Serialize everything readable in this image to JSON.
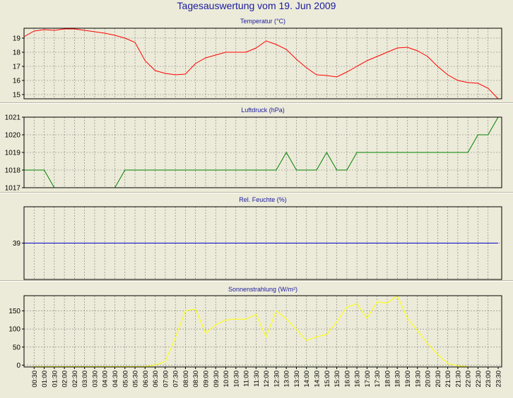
{
  "title": "Tagesauswertung vom 19. Jun 2009",
  "chart_data": [
    {
      "type": "line",
      "title": "Temperatur (°C)",
      "color": "#ff0000",
      "ylim": [
        14.7,
        19.7
      ],
      "yticks": [
        15,
        16,
        17,
        18,
        19
      ],
      "x_minutes": [
        0,
        30,
        60,
        90,
        120,
        150,
        180,
        210,
        240,
        270,
        300,
        330,
        360,
        390,
        420,
        450,
        480,
        510,
        540,
        570,
        600,
        630,
        660,
        690,
        720,
        750,
        780,
        810,
        840,
        870,
        900,
        930,
        960,
        990,
        1020,
        1050,
        1080,
        1110,
        1140,
        1170,
        1200,
        1230,
        1260,
        1290,
        1320,
        1350,
        1380,
        1410
      ],
      "values": [
        19.1,
        19.5,
        19.6,
        19.55,
        19.65,
        19.65,
        19.55,
        19.45,
        19.35,
        19.2,
        19.0,
        18.7,
        17.4,
        16.7,
        16.5,
        16.4,
        16.45,
        17.2,
        17.6,
        17.8,
        18.0,
        18.0,
        18.0,
        18.3,
        18.8,
        18.55,
        18.2,
        17.5,
        16.9,
        16.4,
        16.35,
        16.25,
        16.6,
        17.0,
        17.4,
        17.7,
        18.0,
        18.3,
        18.35,
        18.1,
        17.7,
        17.0,
        16.4,
        16.0,
        15.85,
        15.8,
        15.45,
        14.7
      ]
    },
    {
      "type": "line",
      "title": "Luftdruck (hPa)",
      "color": "#008000",
      "ylim": [
        1017,
        1021
      ],
      "yticks": [
        1017,
        1018,
        1019,
        1020,
        1021
      ],
      "x_minutes": [
        0,
        60,
        90,
        270,
        300,
        720,
        750,
        780,
        810,
        840,
        870,
        900,
        930,
        960,
        990,
        1020,
        1320,
        1350,
        1380,
        1410
      ],
      "values": [
        1018,
        1018,
        1017,
        1017,
        1018,
        1018,
        1018,
        1019,
        1018,
        1018,
        1018,
        1019,
        1018,
        1018,
        1019,
        1019,
        1019,
        1020,
        1020,
        1021
      ]
    },
    {
      "type": "line",
      "title": "Rel. Feuchte (%)",
      "color": "#0000cc",
      "ylim": [
        35,
        43
      ],
      "yticks": [
        39
      ],
      "x_minutes": [
        0,
        1410
      ],
      "values": [
        39,
        39
      ]
    },
    {
      "type": "line",
      "title": "Sonnenstrahlung (W/m²)",
      "color": "#ffff00",
      "ylim": [
        -5,
        192
      ],
      "yticks": [
        0,
        50,
        100,
        150
      ],
      "x_minutes": [
        30,
        180,
        360,
        390,
        420,
        450,
        480,
        510,
        540,
        570,
        600,
        630,
        660,
        690,
        720,
        750,
        780,
        810,
        840,
        870,
        900,
        930,
        960,
        990,
        1020,
        1050,
        1080,
        1110,
        1140,
        1170,
        1200,
        1230,
        1260,
        1290,
        1320
      ],
      "values": [
        -4,
        -4,
        -4,
        0,
        10,
        75,
        150,
        155,
        88,
        112,
        125,
        127,
        127,
        140,
        78,
        150,
        128,
        98,
        68,
        78,
        85,
        120,
        160,
        170,
        130,
        175,
        172,
        192,
        130,
        95,
        60,
        30,
        5,
        -2,
        -4
      ]
    }
  ],
  "time_labels": [
    "00:30",
    "01:00",
    "01:30",
    "02:00",
    "02:30",
    "03:00",
    "03:30",
    "04:00",
    "04:30",
    "05:00",
    "05:30",
    "06:00",
    "06:30",
    "07:00",
    "07:30",
    "08:00",
    "08:30",
    "09:00",
    "09:30",
    "10:00",
    "10:30",
    "11:00",
    "11:30",
    "12:00",
    "12:30",
    "13:00",
    "13:30",
    "14:00",
    "14:30",
    "15:00",
    "15:30",
    "16:00",
    "16:30",
    "17:00",
    "17:30",
    "18:00",
    "18:30",
    "19:00",
    "19:30",
    "20:00",
    "20:30",
    "21:00",
    "21:30",
    "22:00",
    "22:30",
    "23:00",
    "23:30"
  ]
}
